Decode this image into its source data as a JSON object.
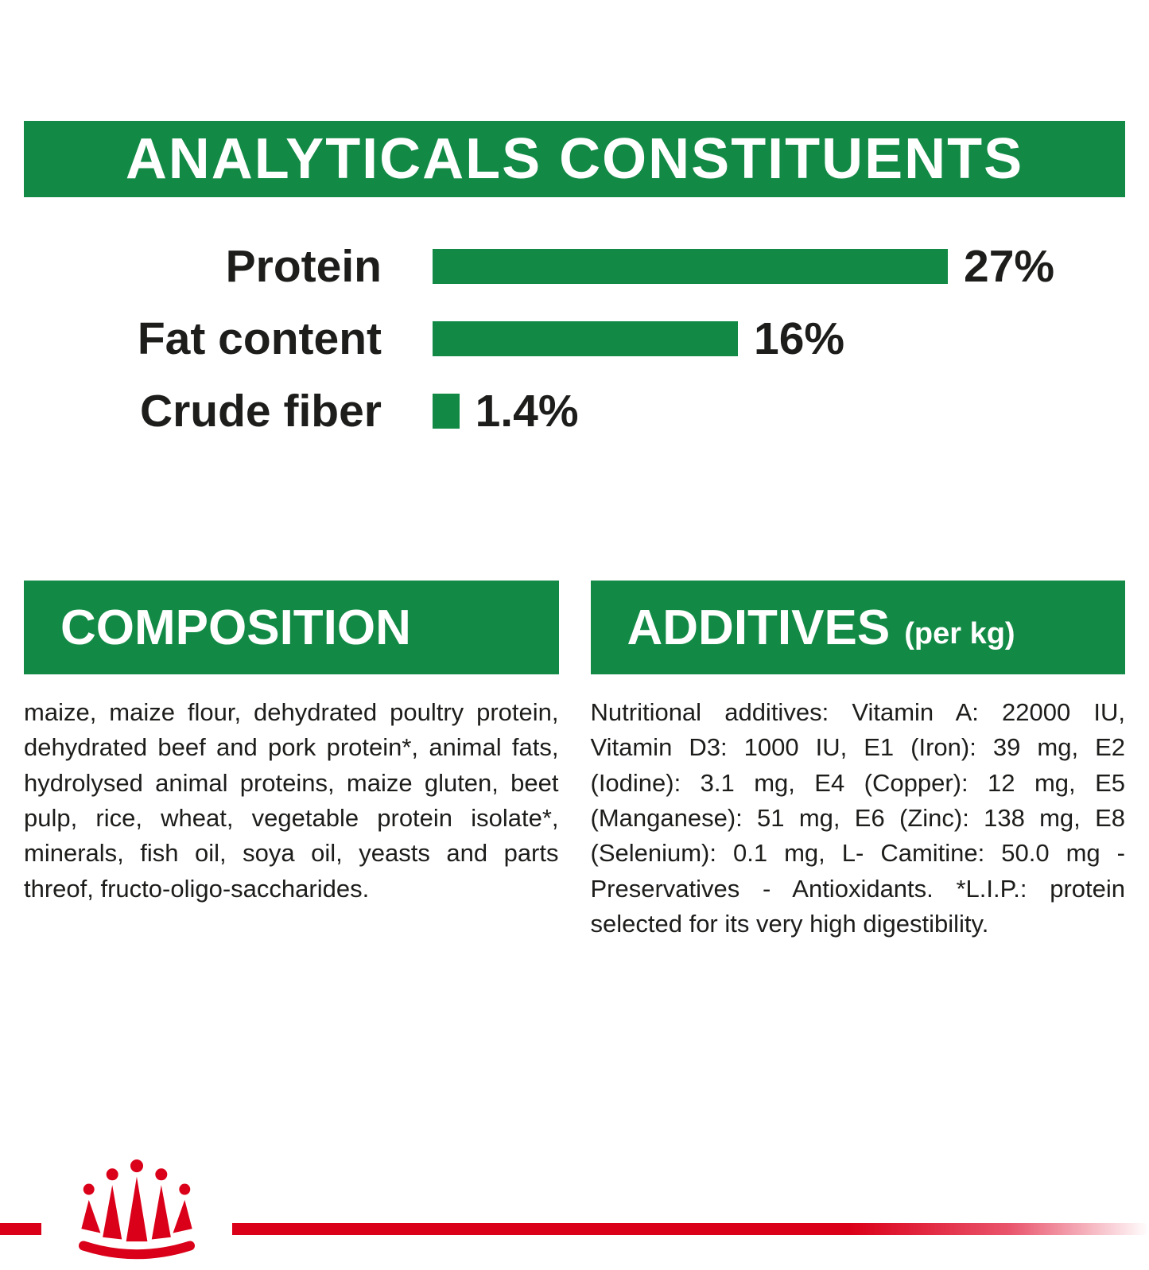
{
  "banner": {
    "title": "ANALYTICALS CONSTITUENTS"
  },
  "chart_data": {
    "type": "bar",
    "orientation": "horizontal",
    "title": "ANALYTICALS CONSTITUENTS",
    "categories": [
      "Protein",
      "Fat content",
      "Crude fiber"
    ],
    "values": [
      27,
      16,
      1.4
    ],
    "value_labels": [
      "27%",
      "16%",
      "1.4%"
    ],
    "unit": "%",
    "xlim": [
      0,
      30
    ],
    "grid": false,
    "legend": "none",
    "bar_color": "#128A45"
  },
  "composition": {
    "header": "COMPOSITION",
    "body": "maize, maize flour, dehydrated poultry protein, dehydrated beef and pork protein*, animal fats, hydrolysed animal proteins, maize gluten, beet pulp, rice, wheat, vegetable protein isolate*, minerals, fish oil, soya oil, yeasts and parts threof, fructo-oligo-saccharides."
  },
  "additives": {
    "header": "ADDITIVES",
    "header_suffix": "(per kg)",
    "body": "Nutritional additives: Vitamin A: 22000 IU, Vitamin D3: 1000 IU, E1 (Iron): 39 mg, E2 (Iodine): 3.1 mg, E4 (Copper): 12 mg, E5 (Manganese): 51 mg, E6 (Zinc): 138 mg, E8 (Selenium): 0.1 mg, L- Camitine: 50.0 mg - Preservatives - Antioxidants. *L.I.P.: protein selected for its very high digestibility."
  },
  "footer": {
    "logo": "royal-canin-crown-logo"
  },
  "colors": {
    "brand_green": "#128A45",
    "brand_red": "#DB0019",
    "text": "#1D1D1B",
    "background": "#FFFFFF"
  }
}
